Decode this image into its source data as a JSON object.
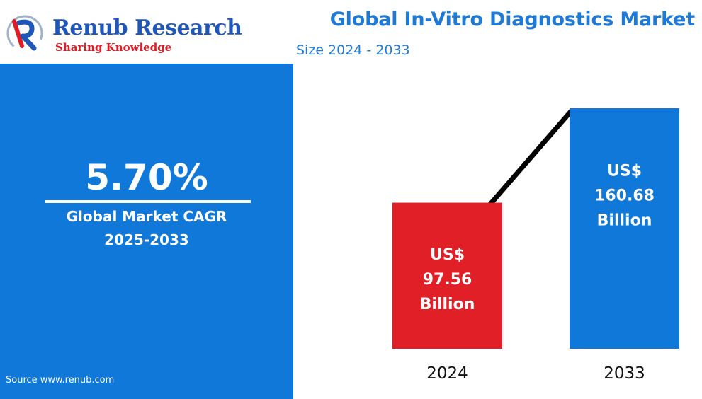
{
  "brand": {
    "name": "Renub Research",
    "tagline": "Sharing Knowledge",
    "primary_color": "#1f57b8",
    "accent_color": "#e01b24",
    "logo_icon": "renub-r-icon"
  },
  "header": {
    "title": "Global In-Vitro Diagnostics Market",
    "subtitle": "Size 2024 - 2033",
    "title_color": "#1f7ad6"
  },
  "cagr_panel": {
    "value": "5.70%",
    "label": "Global Market CAGR",
    "period": "2025-2033",
    "background_color": "#0f78d8"
  },
  "source": "Source  www.renub.com",
  "chart_data": {
    "type": "bar",
    "categories": [
      "2024",
      "2033"
    ],
    "values": [
      97.56,
      160.68
    ],
    "unit": "US$ Billion",
    "bar_labels": [
      [
        "US$",
        "97.56",
        "Billion"
      ],
      [
        "US$",
        "160.68",
        "Billion"
      ]
    ],
    "bar_colors": [
      "#e11f26",
      "#0f78d8"
    ],
    "trend_line": true,
    "title": "",
    "xlabel": "",
    "ylabel": "",
    "grid": false,
    "legend": "none"
  }
}
